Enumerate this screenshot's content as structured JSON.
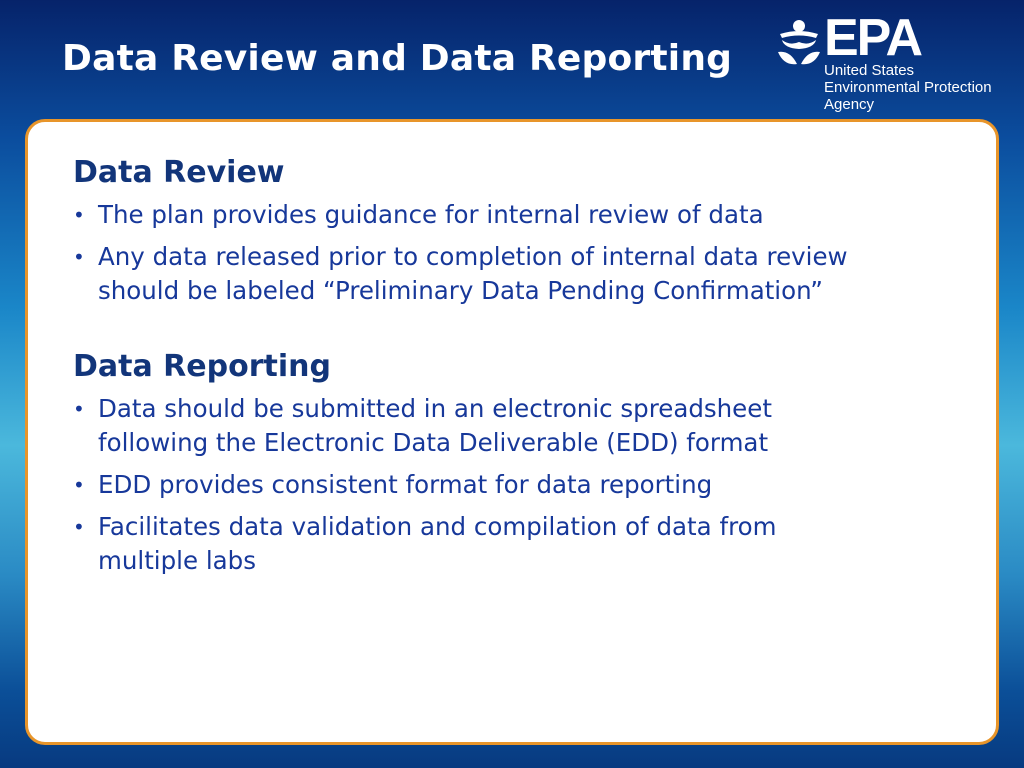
{
  "slide": {
    "title": "Data Review and Data Reporting",
    "logo": {
      "mark": "EPA",
      "line1": "United States",
      "line2": "Environmental Protection",
      "line3": "Agency"
    },
    "colors": {
      "card_border": "#e8952a",
      "heading": "#12357a",
      "text": "#17389a"
    },
    "sections": [
      {
        "heading": "Data Review",
        "bullets": [
          "The plan provides guidance for internal review of data",
          "Any data released prior to completion of internal data review should be labeled “Preliminary Data Pending Confirmation”"
        ]
      },
      {
        "heading": "Data Reporting",
        "bullets": [
          "Data should be submitted in an electronic spreadsheet following the Electronic Data Deliverable (EDD) format",
          "EDD provides consistent format for data reporting",
          "Facilitates data validation and compilation of data from multiple labs"
        ]
      }
    ]
  }
}
